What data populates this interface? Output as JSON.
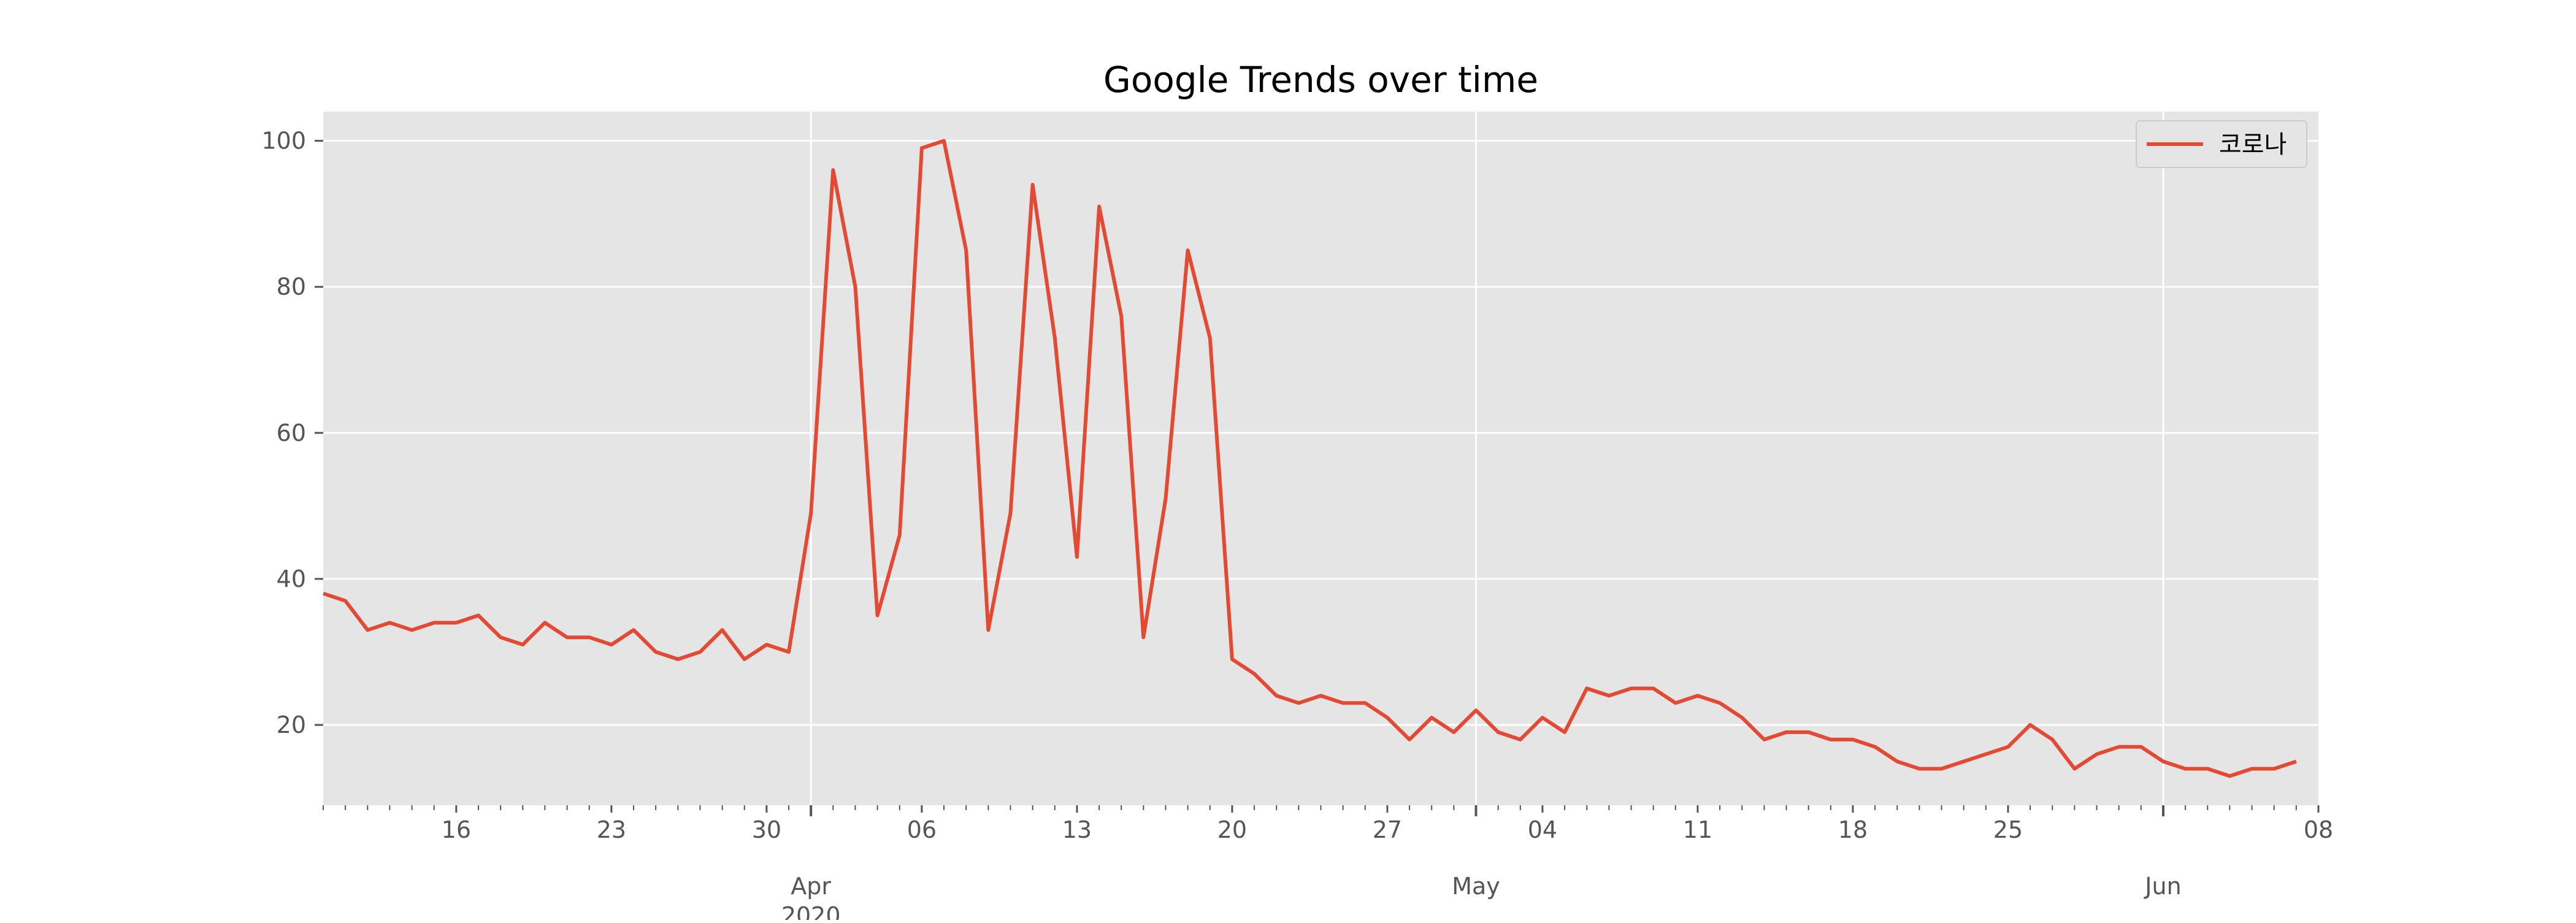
{
  "chart_data": {
    "type": "line",
    "title": "Google Trends over time",
    "xlabel": "",
    "ylabel": "",
    "x_start": "2020-03-10",
    "x_end": "2020-06-08",
    "ylim": [
      9,
      104
    ],
    "yticks": [
      20,
      40,
      60,
      80,
      100
    ],
    "grid": true,
    "legend_position": "top-right",
    "colors": {
      "series": "#E24A33",
      "plot_bg": "#E5E5E5",
      "grid": "#FFFFFF",
      "tick": "#555555"
    },
    "x_major_ticks": [
      {
        "date": "2020-04-01",
        "label": "Apr",
        "sublabel": "2020"
      },
      {
        "date": "2020-05-01",
        "label": "May",
        "sublabel": ""
      },
      {
        "date": "2020-06-01",
        "label": "Jun",
        "sublabel": ""
      }
    ],
    "x_minor_ticks": [
      {
        "date": "2020-03-16",
        "label": "16"
      },
      {
        "date": "2020-03-23",
        "label": "23"
      },
      {
        "date": "2020-03-30",
        "label": "30"
      },
      {
        "date": "2020-04-06",
        "label": "06"
      },
      {
        "date": "2020-04-13",
        "label": "13"
      },
      {
        "date": "2020-04-20",
        "label": "20"
      },
      {
        "date": "2020-04-27",
        "label": "27"
      },
      {
        "date": "2020-05-04",
        "label": "04"
      },
      {
        "date": "2020-05-11",
        "label": "11"
      },
      {
        "date": "2020-05-18",
        "label": "18"
      },
      {
        "date": "2020-05-25",
        "label": "25"
      },
      {
        "date": "2020-06-08",
        "label": "08"
      }
    ],
    "series": [
      {
        "name": "코로나",
        "color": "#E24A33",
        "values": [
          38,
          37,
          33,
          34,
          33,
          34,
          34,
          35,
          32,
          31,
          34,
          32,
          32,
          31,
          33,
          30,
          29,
          30,
          33,
          29,
          31,
          30,
          49,
          96,
          80,
          35,
          46,
          99,
          100,
          85,
          33,
          49,
          94,
          73,
          43,
          91,
          76,
          32,
          51,
          85,
          73,
          29,
          27,
          24,
          23,
          24,
          23,
          23,
          21,
          18,
          21,
          19,
          22,
          19,
          18,
          21,
          19,
          25,
          24,
          25,
          25,
          23,
          24,
          23,
          21,
          18,
          19,
          19,
          18,
          18,
          17,
          15,
          14,
          14,
          15,
          16,
          17,
          20,
          18,
          14,
          16,
          17,
          17,
          15,
          14,
          14,
          13,
          14,
          14,
          15
        ]
      }
    ]
  }
}
